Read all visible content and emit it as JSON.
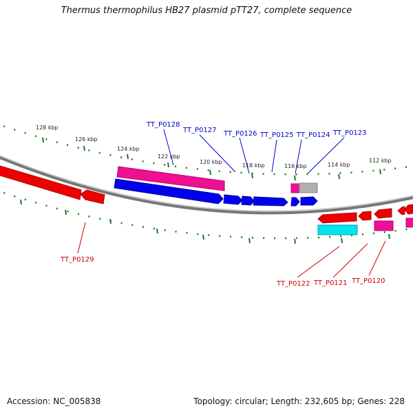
{
  "title": "Thermus thermophilus HB27 plasmid pTT27, complete sequence",
  "footer": {
    "accession": "Accession: NC_005838",
    "summary": "Topology: circular; Length: 232,605 bp; Genes: 228"
  },
  "scale_labels": [
    "128 kbp",
    "126 kbp",
    "124 kbp",
    "122 kbp",
    "120 kbp",
    "118 kbp",
    "116 kbp",
    "114 kbp",
    "112 kbp"
  ],
  "gene_labels": {
    "top": [
      "TT_P0128",
      "TT_P0127",
      "TT_P0126",
      "TT_P0125",
      "TT_P0124",
      "TT_P0123"
    ],
    "bottom": [
      "TT_P0129",
      "TT_P0122",
      "TT_P0121",
      "TT_P0120"
    ]
  },
  "colors": {
    "top_label": "#0000cc",
    "bottom_label": "#cc0000",
    "tick": "#1a7a1a",
    "backbone": "#808080",
    "forward_gene": "#0000ee",
    "reverse_gene": "#ee0000",
    "magenta_gene": "#ee1090",
    "cyan_gene": "#00e5ee",
    "gray_gene": "#b0b0b0"
  }
}
